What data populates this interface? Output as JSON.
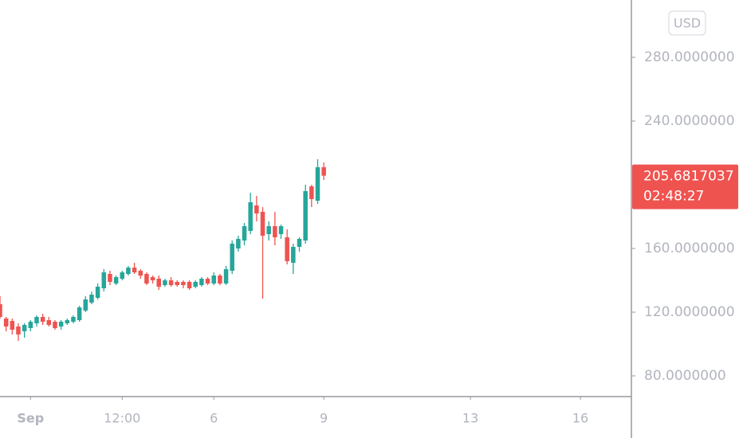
{
  "chart_data": {
    "type": "candlestick",
    "currency": "USD",
    "up_color": "#26a69a",
    "down_color": "#ef5350",
    "x": [
      -20,
      -16,
      -12,
      -8,
      -4,
      0,
      4,
      8,
      12,
      16,
      20,
      24,
      28,
      32,
      36,
      40,
      44,
      48,
      52,
      56,
      60,
      64,
      68,
      72,
      76,
      80,
      84,
      88,
      92,
      96,
      100,
      104,
      108,
      112,
      116,
      120,
      124,
      128,
      132,
      136,
      140,
      144,
      148,
      152,
      156,
      160,
      164,
      168,
      172,
      176,
      180,
      184,
      188,
      192
    ],
    "open": [
      125,
      116,
      114.5,
      111,
      108,
      110,
      113,
      117,
      115,
      114,
      111,
      113,
      114,
      115,
      121,
      126,
      129,
      135,
      144,
      138,
      141,
      144,
      148,
      146,
      144,
      142,
      141,
      137,
      140,
      139,
      139,
      139,
      136,
      137,
      141,
      138,
      143,
      138,
      146,
      160,
      165,
      171,
      187,
      183,
      169,
      174,
      169,
      167,
      151,
      161,
      165,
      199,
      190,
      211
    ],
    "high": [
      130,
      117,
      116,
      113,
      113,
      115,
      118,
      119,
      117,
      115,
      115,
      116,
      118,
      124,
      130,
      133,
      138,
      147,
      146,
      143,
      146,
      149,
      151,
      147,
      145,
      143,
      143,
      141,
      142,
      140,
      140,
      140,
      140,
      142,
      142,
      145,
      144,
      149,
      165,
      168,
      176,
      195,
      193,
      186,
      177,
      183,
      175,
      172,
      163,
      167,
      200,
      200,
      216,
      214
    ],
    "low": [
      116,
      108,
      106,
      102,
      104,
      108,
      111,
      112,
      111,
      109,
      109,
      112,
      113,
      114,
      120,
      125,
      128,
      133,
      137,
      137,
      140,
      143,
      144,
      141,
      137,
      138,
      134,
      136,
      136,
      136,
      135,
      134,
      135,
      136,
      137,
      137,
      137,
      137,
      144,
      158,
      162,
      169,
      177,
      128.5,
      165,
      162,
      166,
      150,
      144,
      158,
      163,
      186,
      188,
      203
    ],
    "close": [
      117,
      111,
      109,
      106,
      112,
      114,
      117,
      114,
      112,
      110,
      114,
      115,
      117,
      123,
      128,
      131,
      136,
      145,
      139,
      142,
      145,
      148,
      145,
      143,
      138,
      140,
      136,
      140,
      137,
      137,
      137,
      135,
      139,
      141,
      138,
      143,
      138,
      147,
      163,
      166,
      174,
      189,
      182,
      168,
      174,
      167,
      174,
      152,
      161,
      166,
      196,
      191,
      211,
      205.6817037
    ],
    "xlim": [
      -20,
      393.4
    ],
    "ylim": [
      67,
      316
    ],
    "xticks": [
      {
        "value": 0,
        "label": "Sep"
      },
      {
        "value": 60,
        "label": "12:00"
      },
      {
        "value": 120,
        "label": "6"
      },
      {
        "value": 192,
        "label": "9"
      },
      {
        "value": 288,
        "label": "13"
      },
      {
        "value": 360,
        "label": "16"
      }
    ],
    "yticks": [
      {
        "value": 80,
        "label": "80.0000000"
      },
      {
        "value": 120,
        "label": "120.0000000"
      },
      {
        "value": 160,
        "label": "160.0000000"
      },
      {
        "value": 240,
        "label": "240.0000000"
      },
      {
        "value": 280,
        "label": "280.0000000"
      }
    ],
    "last_price": {
      "value": 205.6817037,
      "label": "205.6817037"
    },
    "countdown": "02:48:27"
  }
}
